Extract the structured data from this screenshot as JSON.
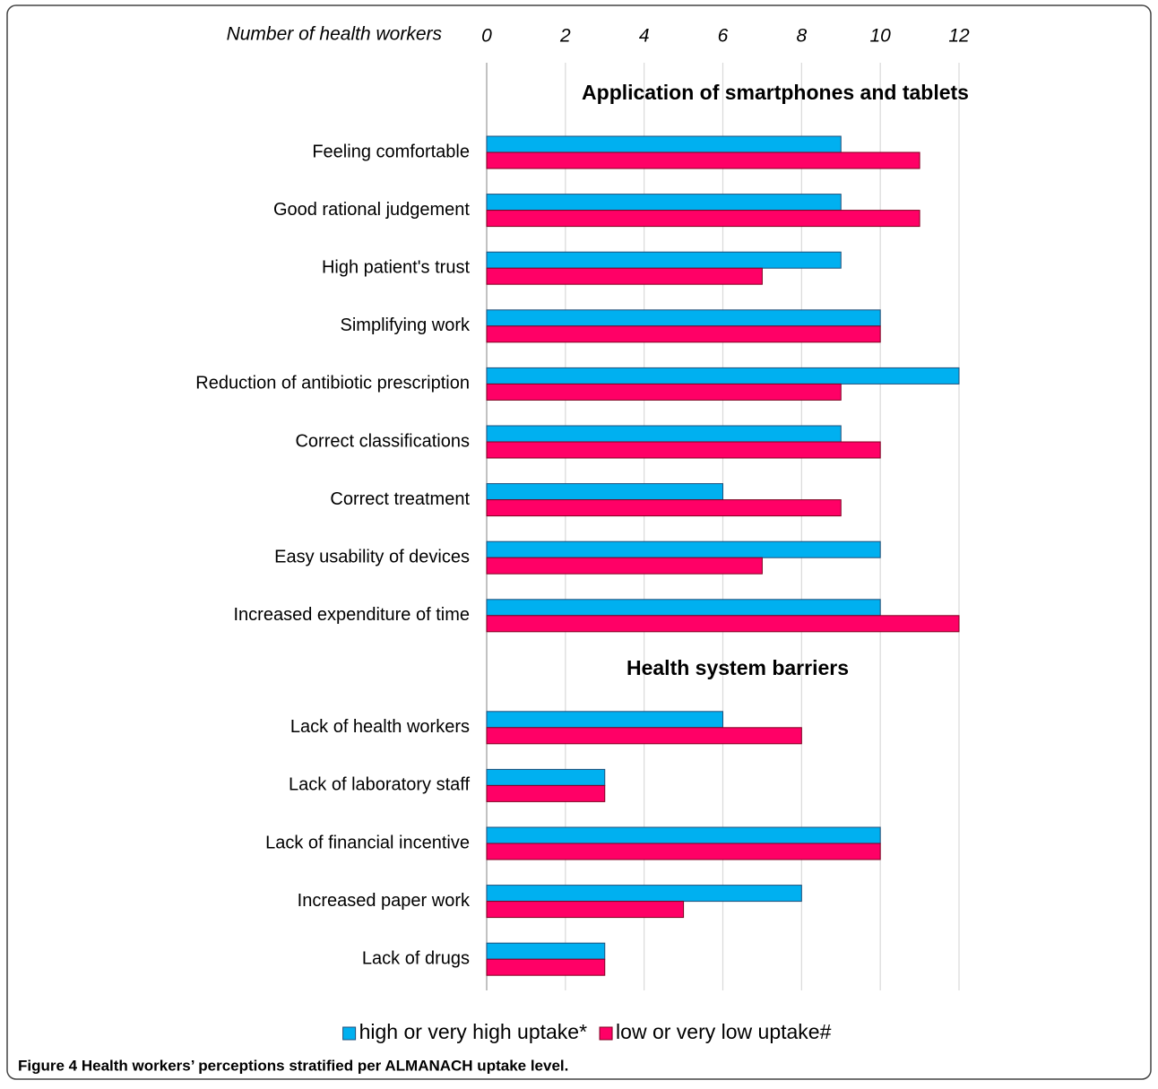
{
  "chart_data": {
    "type": "bar",
    "orientation": "horizontal",
    "xlabel": "Number of health workers",
    "xlim": [
      0,
      12
    ],
    "xticks": [
      0,
      2,
      4,
      6,
      8,
      10,
      12
    ],
    "grid": true,
    "legend": "bottom",
    "sections": [
      {
        "title": "Application of smartphones and tablets",
        "categories": [
          "Feeling comfortable",
          "Good rational judgement",
          "High patient's trust",
          "Simplifying work",
          "Reduction of antibiotic prescription",
          "Correct classifications",
          "Correct treatment",
          "Easy usability of devices",
          "Increased expenditure of time"
        ]
      },
      {
        "title": "Health system barriers",
        "categories": [
          "Lack of health workers",
          "Lack of laboratory staff",
          "Lack of financial incentive",
          "Increased paper work",
          "Lack of drugs"
        ]
      }
    ],
    "series": [
      {
        "name": "high or very high uptake*",
        "color": "#00b0f0",
        "values": [
          9,
          9,
          9,
          10,
          12,
          9,
          6,
          10,
          10,
          6,
          3,
          10,
          8,
          3
        ]
      },
      {
        "name": "low or very low uptake#",
        "color": "#ff0066",
        "values": [
          11,
          11,
          7,
          10,
          9,
          10,
          9,
          7,
          12,
          8,
          3,
          10,
          5,
          3
        ]
      }
    ],
    "caption": "Figure 4 Health workers’ perceptions stratified per ALMANACH uptake level."
  }
}
